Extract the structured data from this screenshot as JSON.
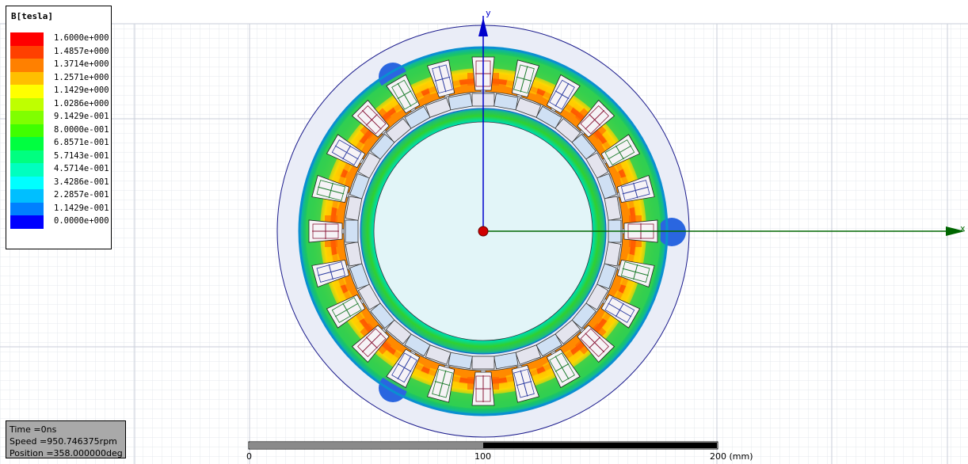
{
  "legend": {
    "title": "B[tesla]",
    "entries": [
      {
        "label": "1.6000e+000",
        "color": "#ff0000"
      },
      {
        "label": "1.4857e+000",
        "color": "#ff4000"
      },
      {
        "label": "1.3714e+000",
        "color": "#ff8000"
      },
      {
        "label": "1.2571e+000",
        "color": "#ffbf00"
      },
      {
        "label": "1.1429e+000",
        "color": "#ffff00"
      },
      {
        "label": "1.0286e+000",
        "color": "#bfff00"
      },
      {
        "label": "9.1429e-001",
        "color": "#80ff00"
      },
      {
        "label": "8.0000e-001",
        "color": "#40ff00"
      },
      {
        "label": "6.8571e-001",
        "color": "#00ff40"
      },
      {
        "label": "5.7143e-001",
        "color": "#00ff80"
      },
      {
        "label": "4.5714e-001",
        "color": "#00ffbf"
      },
      {
        "label": "3.4286e-001",
        "color": "#00ffff"
      },
      {
        "label": "2.2857e-001",
        "color": "#00bfff"
      },
      {
        "label": "1.1429e-001",
        "color": "#0080ff"
      },
      {
        "label": "0.0000e+000",
        "color": "#0000ff"
      }
    ]
  },
  "axes": {
    "x_label": "x",
    "y_label": "y"
  },
  "info": {
    "time": "Time     =0ns",
    "speed": "Speed    =950.746375rpm",
    "position": "Position =358.000000deg"
  },
  "scale_bar": {
    "label_0": "0",
    "label_100": "100",
    "label_200": "200 (mm)"
  }
}
